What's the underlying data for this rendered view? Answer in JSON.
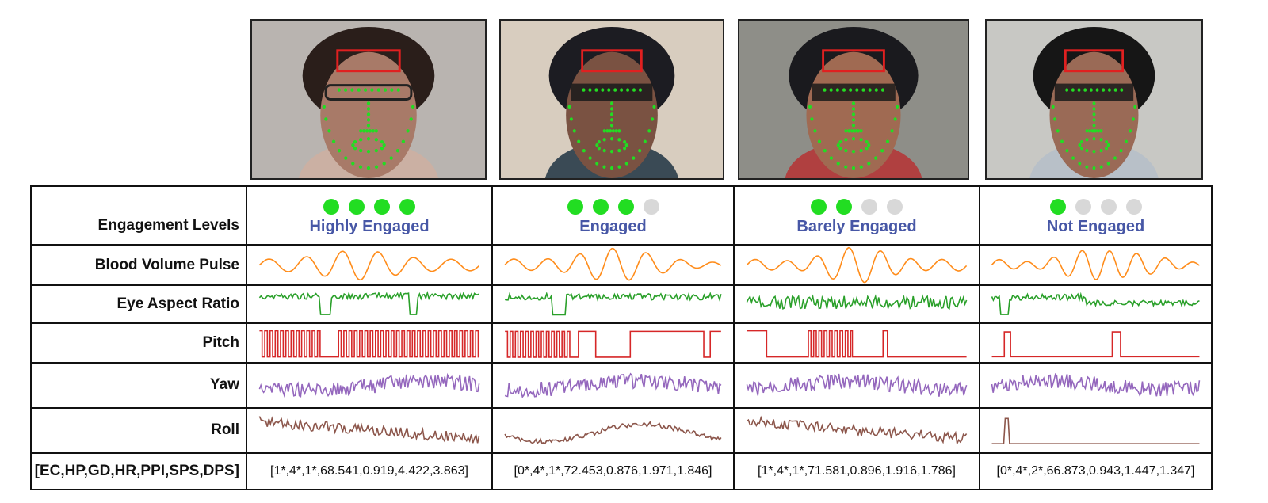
{
  "colors": {
    "engaged_dot": "#22dd22",
    "inactive_dot": "#d8d8d8",
    "level_text": "#4757a6",
    "bvp": "#ff8c1a",
    "ear": "#2aa02a",
    "pitch": "#d62728",
    "yaw": "#9467bd",
    "roll": "#8c564b",
    "roi_box": "#e02020",
    "landmark": "#22dd22",
    "eye_mask": "#1a1a1a"
  },
  "row_labels": {
    "engagement": "Engagement Levels",
    "bvp": "Blood Volume Pulse",
    "ear": "Eye Aspect Ratio",
    "pitch": "Pitch",
    "yaw": "Yaw",
    "roll": "Roll",
    "features": "[EC,HP,GD,HR,PPI,SPS,DPS]"
  },
  "columns": [
    {
      "level": "Highly Engaged",
      "dots_on": 4,
      "features": "[1*,4*,1*,68.541,0.919,4.422,3.863]"
    },
    {
      "level": "Engaged",
      "dots_on": 3,
      "features": "[0*,4*,1*,72.453,0.876,1.971,1.846]"
    },
    {
      "level": "Barely Engaged",
      "dots_on": 2,
      "features": "[1*,4*,1*,71.581,0.896,1.916,1.786]"
    },
    {
      "level": "Not Engaged",
      "dots_on": 1,
      "features": "[0*,4*,2*,66.873,0.943,1.447,1.347]"
    }
  ],
  "photos": [
    {
      "name": "subject-1",
      "background": "#b9b4b0",
      "hair": "#2a1e1a",
      "skin": "#a87a68",
      "clothing": "#cbb0a3",
      "eye_mask": false
    },
    {
      "name": "subject-2",
      "background": "#d8cdbf",
      "hair": "#1c1c22",
      "skin": "#7a5242",
      "clothing": "#3a4a55",
      "eye_mask": true
    },
    {
      "name": "subject-3",
      "background": "#8e8e88",
      "hair": "#1a1a1e",
      "skin": "#a06a52",
      "clothing": "#b04040",
      "eye_mask": true
    },
    {
      "name": "subject-4",
      "background": "#c8c8c4",
      "hair": "#161616",
      "skin": "#9a6a56",
      "clothing": "#b8c0c8",
      "eye_mask": true
    }
  ]
}
